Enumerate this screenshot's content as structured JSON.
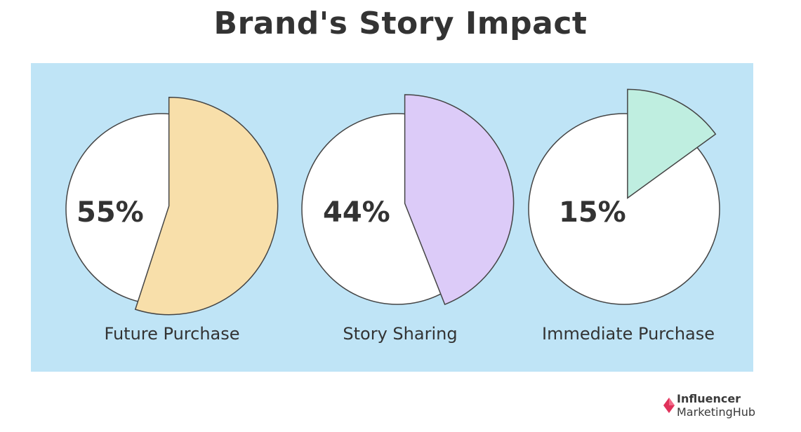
{
  "title": "Brand's Story Impact",
  "chart_data": [
    {
      "type": "pie",
      "label": "Future Purchase",
      "value": 55,
      "value_text": "55%",
      "color": "#f8dfaa"
    },
    {
      "type": "pie",
      "label": "Story Sharing",
      "value": 44,
      "value_text": "44%",
      "color": "#dccbf8"
    },
    {
      "type": "pie",
      "label": "Immediate Purchase",
      "value": 15,
      "value_text": "15%",
      "color": "#bfeee0"
    }
  ],
  "colors": {
    "panel": "#bfe4f6",
    "text": "#333333",
    "brand_accent": "#e0315a"
  },
  "brand": {
    "line1": "Influencer",
    "line2": "MarketingHub"
  }
}
